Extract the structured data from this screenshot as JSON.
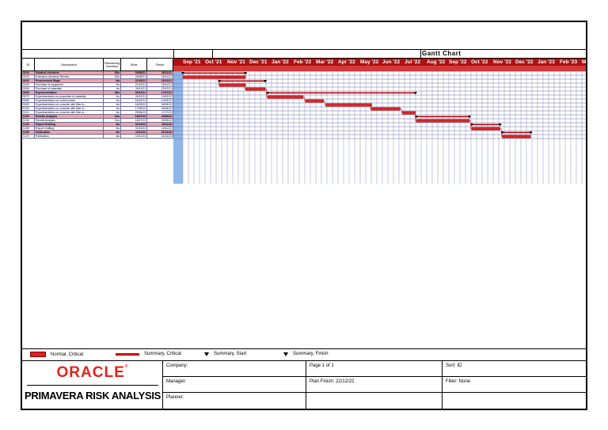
{
  "gantt": {
    "title": "Gantt Chart"
  },
  "table": {
    "headers": [
      "ID",
      "Description",
      "Remaining Duration",
      "Start",
      "Finish"
    ],
    "rows": [
      {
        "id": "S010",
        "desc": "Detailed Literature",
        "dur": "52w",
        "start": "03/08/21",
        "finish": "26/11/21",
        "summary": true
      },
      {
        "id": "S020",
        "desc": "Extensive Literature Review",
        "dur": "52w",
        "start": "03/08/21",
        "finish": "26/11/21",
        "summary": false
      },
      {
        "id": "S030",
        "desc": "Procurement Stage",
        "dur": "8w",
        "start": "21/10/21",
        "finish": "23/12/21",
        "summary": true
      },
      {
        "id": "S040",
        "desc": "Purchase of equipment",
        "dur": "4w",
        "start": "21/10/21",
        "finish": "26/11/21",
        "summary": false
      },
      {
        "id": "S050",
        "desc": "Purchase of materials",
        "dur": "4w",
        "start": "26/11/21",
        "finish": "23/12/21",
        "summary": false
      },
      {
        "id": "S060",
        "desc": "Experimentation",
        "dur": "28w",
        "start": "26/12/21",
        "finish": "17/07/22",
        "summary": true
      },
      {
        "id": "S070",
        "desc": "Experimentation on properties of materials",
        "dur": "4w",
        "start": "26/12/21",
        "finish": "13/02/22",
        "summary": false
      },
      {
        "id": "S080",
        "desc": "Experimentation on control mixes",
        "dur": "4w",
        "start": "16/02/22",
        "finish": "13/03/22",
        "summary": false
      },
      {
        "id": "S090",
        "desc": "Experimentation on concrete with fiber in...",
        "dur": "6w",
        "start": "16/03/22",
        "finish": "18/05/22",
        "summary": false
      },
      {
        "id": "S100",
        "desc": "Experimentation on concrete with fiber in...",
        "dur": "4w",
        "start": "17/05/22",
        "finish": "26/06/22",
        "summary": false
      },
      {
        "id": "S110",
        "desc": "Experimentation on concrete with fiber in...",
        "dur": "4w",
        "start": "29/06/22",
        "finish": "17/07/22",
        "summary": false
      },
      {
        "id": "S120",
        "desc": "Results Analysis",
        "dur": "10w",
        "start": "18/07/22",
        "finish": "29/09/22",
        "summary": true
      },
      {
        "id": "S130",
        "desc": "Results Analysis",
        "dur": "10w",
        "start": "18/07/22",
        "finish": "29/09/22",
        "summary": false
      },
      {
        "id": "S140",
        "desc": "Report Drafting",
        "dur": "6w",
        "start": "02/10/22",
        "finish": "10/11/22",
        "summary": true
      },
      {
        "id": "S150",
        "desc": "Report Drafting",
        "dur": "6w",
        "start": "02/10/22",
        "finish": "10/11/22",
        "summary": false
      },
      {
        "id": "S160",
        "desc": "Publication",
        "dur": "6w",
        "start": "13/11/22",
        "finish": "22/12/22",
        "summary": true
      },
      {
        "id": "S170",
        "desc": "Publication",
        "dur": "6w",
        "start": "13/11/22",
        "finish": "22/12/22",
        "summary": false
      }
    ]
  },
  "timeline": {
    "months": [
      "Sep '21",
      "Oct '21",
      "Nov '21",
      "Dec '21",
      "Jan '22",
      "Feb '22",
      "Mar '22",
      "Apr '22",
      "May '22",
      "Jun '22",
      "Jul '22",
      "Aug '22",
      "Sep '22",
      "Oct '22",
      "Nov '22",
      "Dec '22",
      "Jan '23",
      "Feb '23",
      "Mar"
    ]
  },
  "legend": {
    "normal_critical": "Normal, Critical",
    "summary_critical": "Summary, Critical",
    "summary_start": "Summary, Start",
    "summary_finish": "Summary, Finish"
  },
  "footer": {
    "company": "Company:",
    "manager": "Manager:",
    "planner": "Planner:",
    "page": "Page 1 of 1",
    "plan_finish": "Plan Finish: 22/12/22",
    "sort": "Sort: ID",
    "filter": "Filter: None",
    "oracle": "ORACLE",
    "product": "PRIMAVERA RISK ANALYSIS"
  },
  "colors": {
    "critical": "#cc0000",
    "summary_row": "#f3a3a3",
    "timeline_header": "#b01010",
    "oracle_red": "#e2231a"
  }
}
